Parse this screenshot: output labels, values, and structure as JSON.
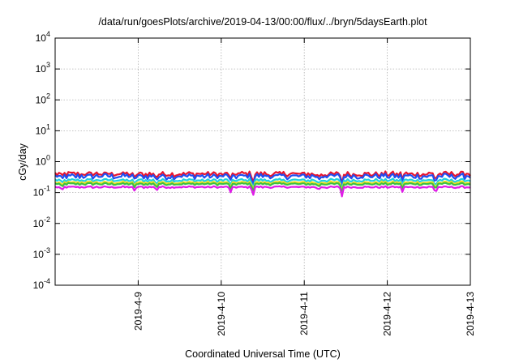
{
  "chart_data": {
    "type": "line",
    "title": "/data/run/goesPlots/archive/2019-04-13/00:00/flux/../bryn/5daysEarth.plot",
    "xlabel": "Coordinated Universal Time (UTC)",
    "ylabel": "cGy/day",
    "yscale": "log",
    "ylim": [
      0.0001,
      10000
    ],
    "xlim": [
      0,
      5
    ],
    "grid": true,
    "y_ticks": [
      {
        "base": "10",
        "exp": "-4",
        "value": 0.0001
      },
      {
        "base": "10",
        "exp": "-3",
        "value": 0.001
      },
      {
        "base": "10",
        "exp": "-2",
        "value": 0.01
      },
      {
        "base": "10",
        "exp": "-1",
        "value": 0.1
      },
      {
        "base": "10",
        "exp": "0",
        "value": 1
      },
      {
        "base": "10",
        "exp": "1",
        "value": 10
      },
      {
        "base": "10",
        "exp": "2",
        "value": 100
      },
      {
        "base": "10",
        "exp": "3",
        "value": 1000
      },
      {
        "base": "10",
        "exp": "4",
        "value": 10000
      }
    ],
    "x_ticks": [
      {
        "label": "2019-4-9",
        "day": 1
      },
      {
        "label": "2019-4-10",
        "day": 2
      },
      {
        "label": "2019-4-11",
        "day": 3
      },
      {
        "label": "2019-4-12",
        "day": 4
      },
      {
        "label": "2019-4-13",
        "day": 5
      }
    ],
    "series": [
      {
        "color": "#e8132e",
        "base": 0.4,
        "noise": 0.16
      },
      {
        "color": "#1f4ef0",
        "base": 0.34,
        "noise": 0.17
      },
      {
        "color": "#1fd0e0",
        "base": 0.25,
        "noise": 0.1
      },
      {
        "color": "#f0e020",
        "base": 0.21,
        "noise": 0.08
      },
      {
        "color": "#3cc040",
        "base": 0.19,
        "noise": 0.07
      },
      {
        "color": "#e01ce8",
        "base": 0.15,
        "noise": 0.06
      }
    ],
    "dips": [
      {
        "day": 0.08,
        "factor": 0.62
      },
      {
        "day": 0.95,
        "factor": 0.7
      },
      {
        "day": 1.22,
        "factor": 0.72
      },
      {
        "day": 2.12,
        "factor": 0.55
      },
      {
        "day": 2.38,
        "factor": 0.45
      },
      {
        "day": 3.17,
        "factor": 0.68
      },
      {
        "day": 3.45,
        "factor": 0.42
      },
      {
        "day": 4.18,
        "factor": 0.72
      },
      {
        "day": 4.58,
        "factor": 0.45
      }
    ]
  }
}
